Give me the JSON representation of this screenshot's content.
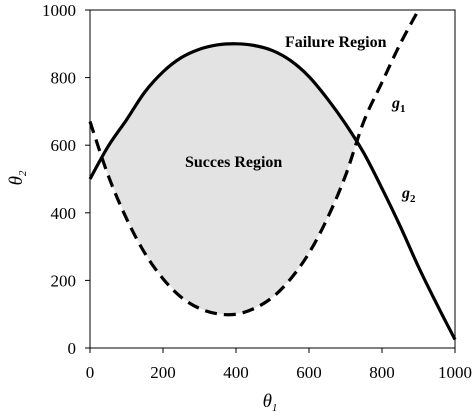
{
  "chart_data": {
    "type": "line",
    "xlabel": "θ",
    "xlabel_sub": "1",
    "ylabel": "θ",
    "ylabel_sub": "2",
    "xlim": [
      0,
      1000
    ],
    "ylim": [
      0,
      1000
    ],
    "xticks": [
      0,
      200,
      400,
      600,
      800,
      1000
    ],
    "yticks": [
      0,
      200,
      400,
      600,
      800,
      1000
    ],
    "grid": false,
    "legend": "none",
    "series": [
      {
        "name": "g1",
        "style": "dashed",
        "x": [
          0,
          50,
          100,
          150,
          200,
          250,
          300,
          350,
          400,
          450,
          500,
          550,
          600,
          650,
          700,
          750,
          800,
          850,
          900
        ],
        "y": [
          670,
          510,
          383,
          281,
          205,
          150,
          117,
          101,
          100,
          117,
          150,
          205,
          281,
          383,
          510,
          670,
          786,
          900,
          1000
        ]
      },
      {
        "name": "g2",
        "style": "solid",
        "x": [
          0,
          50,
          100,
          150,
          200,
          250,
          300,
          350,
          400,
          450,
          500,
          550,
          600,
          650,
          700,
          750,
          800,
          850,
          900,
          950,
          1000
        ],
        "y": [
          500,
          597,
          675,
          757,
          817,
          859,
          884,
          897,
          900,
          895,
          880,
          850,
          803,
          738,
          663,
          577,
          472,
          360,
          240,
          130,
          25
        ]
      }
    ],
    "annotations": {
      "failure_region": "Failure Region",
      "success_region": "Succes Region",
      "g1_letter": "g",
      "g1_sub": "1",
      "g2_letter": "g",
      "g2_sub": "2"
    },
    "colors": {
      "fill": "#e3e3e3",
      "line": "#000000"
    }
  }
}
